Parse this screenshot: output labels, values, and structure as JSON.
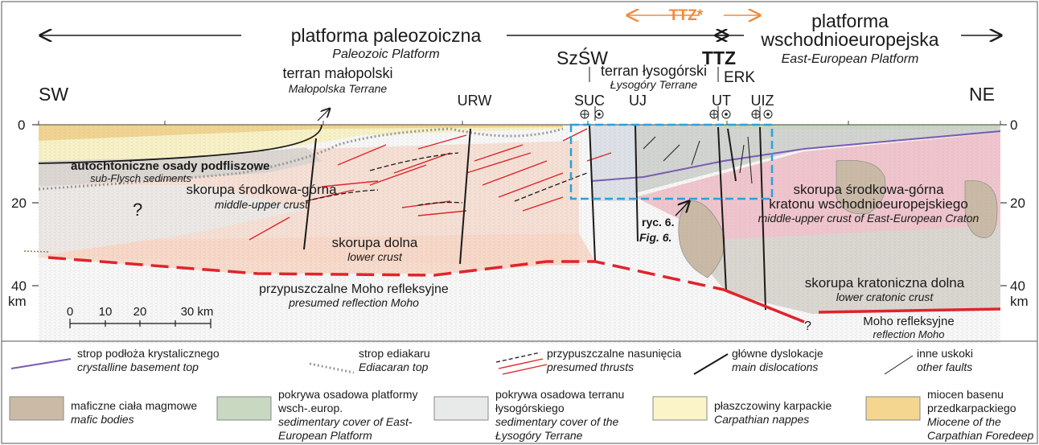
{
  "header": {
    "paleozoic_pl": "platforma paleozoiczna",
    "paleozoic_en": "Paleozoic Platform",
    "ttz_star": "TTZ*",
    "ttz": "TTZ",
    "eep_pl_1": "platforma",
    "eep_pl_2": "wschodnioeuropejska",
    "eep_en": "East-European Platform",
    "sw": "SW",
    "ne": "NE",
    "malopolska_pl": "terran małopolski",
    "malopolska_en": "Małopolska Terrane",
    "szsw": "SzŚW",
    "lysogory_pl": "terran łysogórski",
    "lysogory_en": "Łysogóry Terrane",
    "erk": "ERK",
    "urw": "URW",
    "suc": "SUC",
    "uj": "UJ",
    "ut": "UT",
    "uiz": "UIZ"
  },
  "section": {
    "depth_ticks": [
      "0",
      "20",
      "40"
    ],
    "km": "km",
    "autochthon_pl": "autochtoniczne osady podfliszowe",
    "autochthon_en": "sub-Flysch sediments",
    "mid_upper_pl": "skorupa środkowa-górna",
    "mid_upper_en": "middle-upper crust",
    "lower_pl": "skorupa dolna",
    "lower_en": "lower crust",
    "moho_pres_pl": "przypuszczalne Moho refleksyjne",
    "moho_pres_en": "presumed reflection Moho",
    "craton_mid_pl_1": "skorupa środkowa-górna",
    "craton_mid_pl_2": "kratonu wschodnioeuropejskiego",
    "craton_mid_en": "middle-upper crust of East-European Craton",
    "craton_low_pl": "skorupa kratoniczna dolna",
    "craton_low_en": "lower cratonic crust",
    "moho_pl": "Moho refleksyjne",
    "moho_en": "reflection Moho",
    "fig_pl": "ryc. 6.",
    "fig_en": "Fig. 6.",
    "question": "?",
    "scale_ticks": [
      "0",
      "10",
      "20",
      "30 km"
    ]
  },
  "legend": {
    "row1": [
      {
        "pl": "strop podłoża krystalicznego",
        "en": "crystalline basement top"
      },
      {
        "pl": "strop ediakaru",
        "en": "Ediacaran top"
      },
      {
        "pl": "przypuszczalne nasunięcia",
        "en": "presumed thrusts"
      },
      {
        "pl": "główne dyslokacje",
        "en": "main dislocations"
      },
      {
        "pl": "inne uskoki",
        "en": "other faults"
      }
    ],
    "row2": [
      {
        "pl": "maficzne ciała magmowe",
        "en": "mafic bodies",
        "color": "#cbbba6"
      },
      {
        "pl": "pokrywa osadowa platformy wsch-.europ.",
        "en": "sedimentary cover of East-European Platform",
        "color": "#c9d9c1"
      },
      {
        "pl": "pokrywa osadowa terranu łysogórskiego",
        "en": "sedimentary cover of the Łysogóry Terrane",
        "color": "#e8eaea"
      },
      {
        "pl": "płaszczowiny karpackie",
        "en": "Carpathian nappes",
        "color": "#fbf4c8"
      },
      {
        "pl": "miocen basenu przedkarpackiego",
        "en": "Miocene of the Carpathian Foredeep",
        "color": "#f4d690"
      }
    ]
  },
  "colors": {
    "orange": "#f08a3c",
    "moho_red": "#e0242a",
    "thrust_red": "#e0242a",
    "basement_purple": "#7b5bb0",
    "box_blue": "#2ba0dd",
    "pink_crust": "#f6d3c6",
    "lower_crust": "#fbe0d3",
    "craton_pink": "#f3c6cf",
    "craton_grey": "#dcd8d2"
  }
}
